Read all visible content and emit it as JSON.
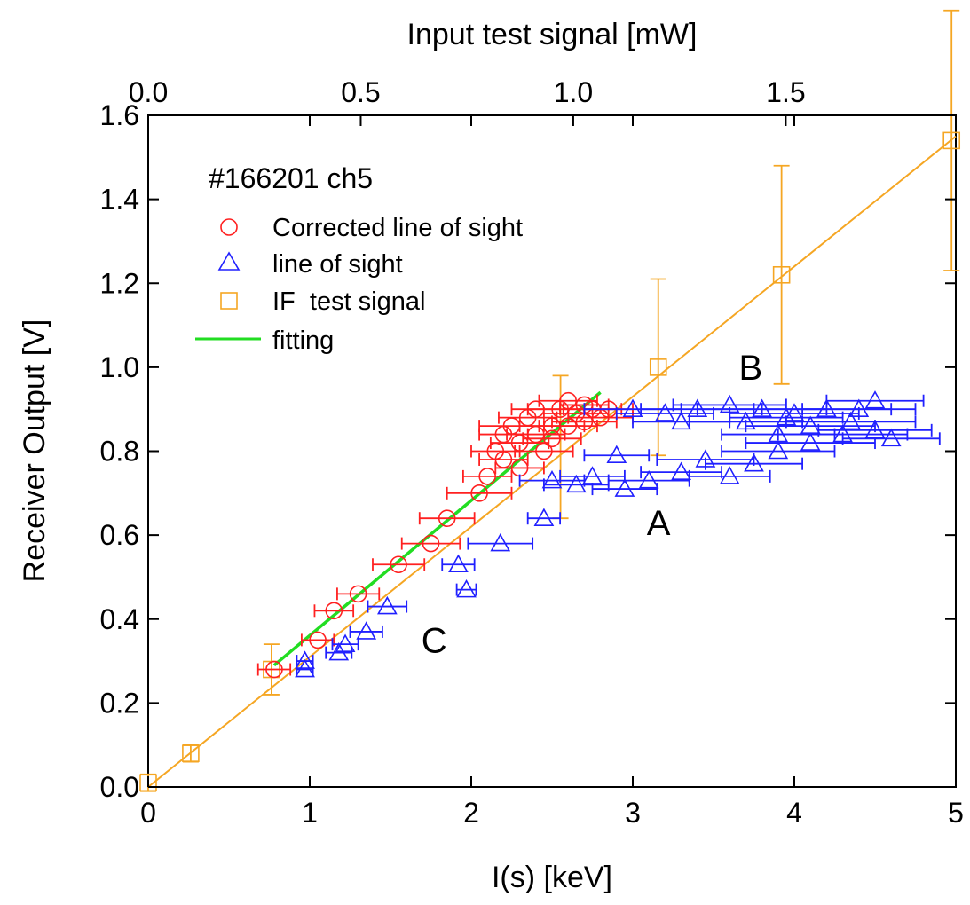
{
  "chart_data": {
    "type": "scatter",
    "title": "",
    "xlabel": "I(s) [keV]",
    "ylabel": "Receiver Output [V]",
    "top_xlabel": "Input test signal [mW]",
    "xlim": [
      0,
      5
    ],
    "ylim": [
      0,
      1.6
    ],
    "top_xlim": [
      0,
      1.9
    ],
    "xticks": [
      "0",
      "1",
      "2",
      "3",
      "4",
      "5"
    ],
    "yticks": [
      "0.0",
      "0.2",
      "0.4",
      "0.6",
      "0.8",
      "1.0",
      "1.2",
      "1.4",
      "1.6"
    ],
    "top_xticks": [
      "0.0",
      "0.5",
      "1.0",
      "1.5"
    ],
    "legend": {
      "title": "#166201 ch5",
      "placement": "top-left",
      "entries": [
        {
          "label": "Corrected line of sight",
          "marker": "circle",
          "color": "#ff2020"
        },
        {
          "label": "line of sight",
          "marker": "triangle",
          "color": "#2020ff"
        },
        {
          "label": "IF  test signal",
          "marker": "square",
          "color": "#f5a623"
        },
        {
          "label": "fitting",
          "marker": "line",
          "color": "#22dd22"
        }
      ]
    },
    "annotations": [
      {
        "text": "B",
        "x": 3.73,
        "y": 0.97
      },
      {
        "text": "A",
        "x": 3.16,
        "y": 0.6
      },
      {
        "text": "C",
        "x": 1.77,
        "y": 0.32
      }
    ],
    "series": [
      {
        "name": "IF  test signal",
        "axis": "top",
        "color": "#f5a623",
        "marker": "square",
        "points": [
          {
            "x": 0.0,
            "y": 0.01,
            "yerr": 0.02
          },
          {
            "x": 0.1,
            "y": 0.08,
            "yerr": 0.02
          },
          {
            "x": 0.29,
            "y": 0.28,
            "yerr": 0.06
          },
          {
            "x": 1.2,
            "y": 1.0,
            "yerr": 0.21
          },
          {
            "x": 1.49,
            "y": 1.22,
            "yerr": 0.26
          },
          {
            "x": 1.89,
            "y": 1.54,
            "yerr": 0.31
          }
        ],
        "line": [
          [
            0.0,
            0.0
          ],
          [
            1.9,
            1.55
          ]
        ]
      },
      {
        "name": "IF  test signal (error bar near 1.0)",
        "axis": "top",
        "color": "#f5a623",
        "marker": "none",
        "points": [
          {
            "x": 0.97,
            "y": 0.81,
            "yerr": 0.17
          }
        ]
      },
      {
        "name": "fitting",
        "color": "#22dd22",
        "marker": "line",
        "line": [
          [
            0.78,
            0.29
          ],
          [
            2.8,
            0.94
          ]
        ]
      },
      {
        "name": "Corrected line of sight",
        "color": "#ff2020",
        "marker": "circle",
        "points": [
          {
            "x": 0.78,
            "y": 0.28,
            "xerr": 0.1
          },
          {
            "x": 1.05,
            "y": 0.35,
            "xerr": 0.1
          },
          {
            "x": 1.15,
            "y": 0.42,
            "xerr": 0.12
          },
          {
            "x": 1.3,
            "y": 0.46,
            "xerr": 0.13
          },
          {
            "x": 1.55,
            "y": 0.53,
            "xerr": 0.16
          },
          {
            "x": 1.75,
            "y": 0.58,
            "xerr": 0.18
          },
          {
            "x": 1.85,
            "y": 0.64,
            "xerr": 0.17
          },
          {
            "x": 2.05,
            "y": 0.7,
            "xerr": 0.2
          },
          {
            "x": 2.1,
            "y": 0.74,
            "xerr": 0.15
          },
          {
            "x": 2.2,
            "y": 0.78,
            "xerr": 0.15
          },
          {
            "x": 2.3,
            "y": 0.82,
            "xerr": 0.18
          },
          {
            "x": 2.25,
            "y": 0.86,
            "xerr": 0.2
          },
          {
            "x": 2.45,
            "y": 0.8,
            "xerr": 0.18
          },
          {
            "x": 2.4,
            "y": 0.84,
            "xerr": 0.18
          },
          {
            "x": 2.35,
            "y": 0.88,
            "xerr": 0.18
          },
          {
            "x": 2.5,
            "y": 0.86,
            "xerr": 0.2
          },
          {
            "x": 2.55,
            "y": 0.9,
            "xerr": 0.2
          },
          {
            "x": 2.6,
            "y": 0.92,
            "xerr": 0.18
          },
          {
            "x": 2.65,
            "y": 0.89,
            "xerr": 0.2
          },
          {
            "x": 2.7,
            "y": 0.87,
            "xerr": 0.2
          },
          {
            "x": 2.75,
            "y": 0.9,
            "xerr": 0.18
          },
          {
            "x": 2.8,
            "y": 0.88,
            "xerr": 0.2
          },
          {
            "x": 2.85,
            "y": 0.9,
            "xerr": 0.15
          },
          {
            "x": 2.15,
            "y": 0.8,
            "xerr": 0.15
          },
          {
            "x": 2.2,
            "y": 0.84,
            "xerr": 0.15
          },
          {
            "x": 2.4,
            "y": 0.9,
            "xerr": 0.15
          },
          {
            "x": 2.6,
            "y": 0.86,
            "xerr": 0.18
          },
          {
            "x": 2.7,
            "y": 0.91,
            "xerr": 0.15
          },
          {
            "x": 2.3,
            "y": 0.76,
            "xerr": 0.15
          },
          {
            "x": 2.5,
            "y": 0.83,
            "xerr": 0.18
          }
        ]
      },
      {
        "name": "line of sight",
        "color": "#2020ff",
        "marker": "triangle",
        "points": [
          {
            "x": 0.97,
            "y": 0.28,
            "xerr": 0.05
          },
          {
            "x": 0.97,
            "y": 0.3,
            "xerr": 0.05
          },
          {
            "x": 1.18,
            "y": 0.32,
            "xerr": 0.08
          },
          {
            "x": 1.22,
            "y": 0.34,
            "xerr": 0.08
          },
          {
            "x": 1.35,
            "y": 0.37,
            "xerr": 0.1
          },
          {
            "x": 1.48,
            "y": 0.43,
            "xerr": 0.12
          },
          {
            "x": 1.97,
            "y": 0.47,
            "xerr": 0.06
          },
          {
            "x": 1.92,
            "y": 0.53,
            "xerr": 0.1
          },
          {
            "x": 2.18,
            "y": 0.58,
            "xerr": 0.2
          },
          {
            "x": 2.45,
            "y": 0.64,
            "xerr": 0.1
          },
          {
            "x": 2.65,
            "y": 0.72,
            "xerr": 0.2
          },
          {
            "x": 2.75,
            "y": 0.74,
            "xerr": 0.2
          },
          {
            "x": 2.9,
            "y": 0.79,
            "xerr": 0.2
          },
          {
            "x": 2.95,
            "y": 0.71,
            "xerr": 0.2
          },
          {
            "x": 3.1,
            "y": 0.73,
            "xerr": 0.25
          },
          {
            "x": 3.3,
            "y": 0.75,
            "xerr": 0.25
          },
          {
            "x": 3.45,
            "y": 0.78,
            "xerr": 0.3
          },
          {
            "x": 3.6,
            "y": 0.74,
            "xerr": 0.25
          },
          {
            "x": 3.75,
            "y": 0.77,
            "xerr": 0.3
          },
          {
            "x": 3.9,
            "y": 0.8,
            "xerr": 0.35
          },
          {
            "x": 4.1,
            "y": 0.82,
            "xerr": 0.4
          },
          {
            "x": 4.3,
            "y": 0.84,
            "xerr": 0.4
          },
          {
            "x": 4.5,
            "y": 0.85,
            "xerr": 0.35
          },
          {
            "x": 4.6,
            "y": 0.83,
            "xerr": 0.3
          },
          {
            "x": 3.0,
            "y": 0.9,
            "xerr": 0.3
          },
          {
            "x": 3.2,
            "y": 0.89,
            "xerr": 0.3
          },
          {
            "x": 3.4,
            "y": 0.9,
            "xerr": 0.35
          },
          {
            "x": 3.6,
            "y": 0.91,
            "xerr": 0.35
          },
          {
            "x": 3.8,
            "y": 0.9,
            "xerr": 0.4
          },
          {
            "x": 4.0,
            "y": 0.89,
            "xerr": 0.4
          },
          {
            "x": 4.2,
            "y": 0.9,
            "xerr": 0.4
          },
          {
            "x": 4.4,
            "y": 0.9,
            "xerr": 0.35
          },
          {
            "x": 4.5,
            "y": 0.92,
            "xerr": 0.3
          },
          {
            "x": 3.3,
            "y": 0.87,
            "xerr": 0.3
          },
          {
            "x": 3.7,
            "y": 0.87,
            "xerr": 0.35
          },
          {
            "x": 4.1,
            "y": 0.86,
            "xerr": 0.4
          },
          {
            "x": 4.35,
            "y": 0.87,
            "xerr": 0.4
          },
          {
            "x": 3.9,
            "y": 0.84,
            "xerr": 0.35
          },
          {
            "x": 2.5,
            "y": 0.73,
            "xerr": 0.2
          },
          {
            "x": 3.95,
            "y": 0.88,
            "xerr": 0.35
          }
        ]
      }
    ]
  }
}
